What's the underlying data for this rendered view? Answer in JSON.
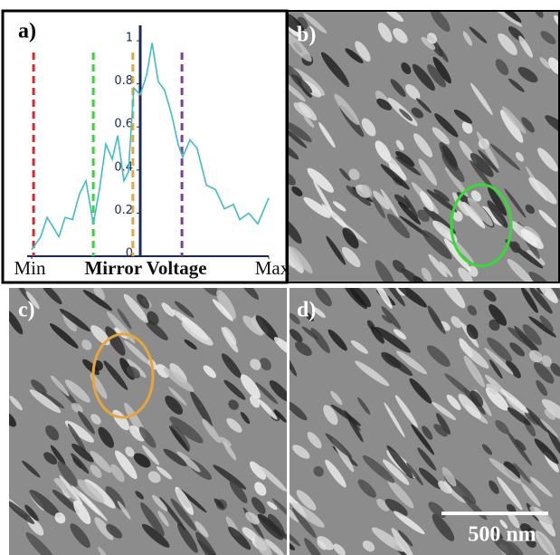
{
  "chart_data": {
    "type": "line",
    "xlabel": "Mirror Voltage",
    "x": [
      0,
      3.8,
      6.5,
      8.8,
      11.5,
      14.1,
      17.2,
      20.2,
      22.9,
      26,
      28.6,
      31.3,
      34,
      36.3,
      38.9,
      40.8,
      43.1,
      45.8,
      48.5,
      50.8,
      53.4,
      56.1,
      59.2,
      61.8,
      63.7,
      66.8,
      69.8,
      73.7,
      77.5,
      81.3,
      85.1,
      87.8,
      91.6,
      95.4,
      100
    ],
    "series": [
      {
        "color": "#3cc0c0",
        "values": [
          0.03,
          0.09,
          0.18,
          0.14,
          0.09,
          0.18,
          0.17,
          0.29,
          0.35,
          0.15,
          0.31,
          0.52,
          0.45,
          0.56,
          0.35,
          0.39,
          0.78,
          0.75,
          0.84,
          0.99,
          0.81,
          0.77,
          0.65,
          0.52,
          0.46,
          0.54,
          0.5,
          0.33,
          0.31,
          0.22,
          0.24,
          0.17,
          0.2,
          0.15,
          0.27
        ]
      }
    ],
    "markers": [
      {
        "x": 0.8,
        "color": "#d62a2a"
      },
      {
        "x": 26,
        "color": "#3ad13a"
      },
      {
        "x": 42.7,
        "color": "#e8a53a"
      },
      {
        "x": 63.4,
        "color": "#7a3f9e"
      }
    ],
    "xlim": [
      0,
      100
    ],
    "xticks": [
      {
        "value": 0,
        "label": "Min"
      },
      {
        "value": 100,
        "label": "Max"
      }
    ],
    "ylim": [
      0,
      1
    ],
    "yticks": [
      0,
      0.2,
      0.4,
      0.6,
      0.8,
      1
    ]
  },
  "panel_labels": [
    "a)",
    "b)",
    "c)",
    "d)"
  ],
  "scale_bar": "500 nm"
}
